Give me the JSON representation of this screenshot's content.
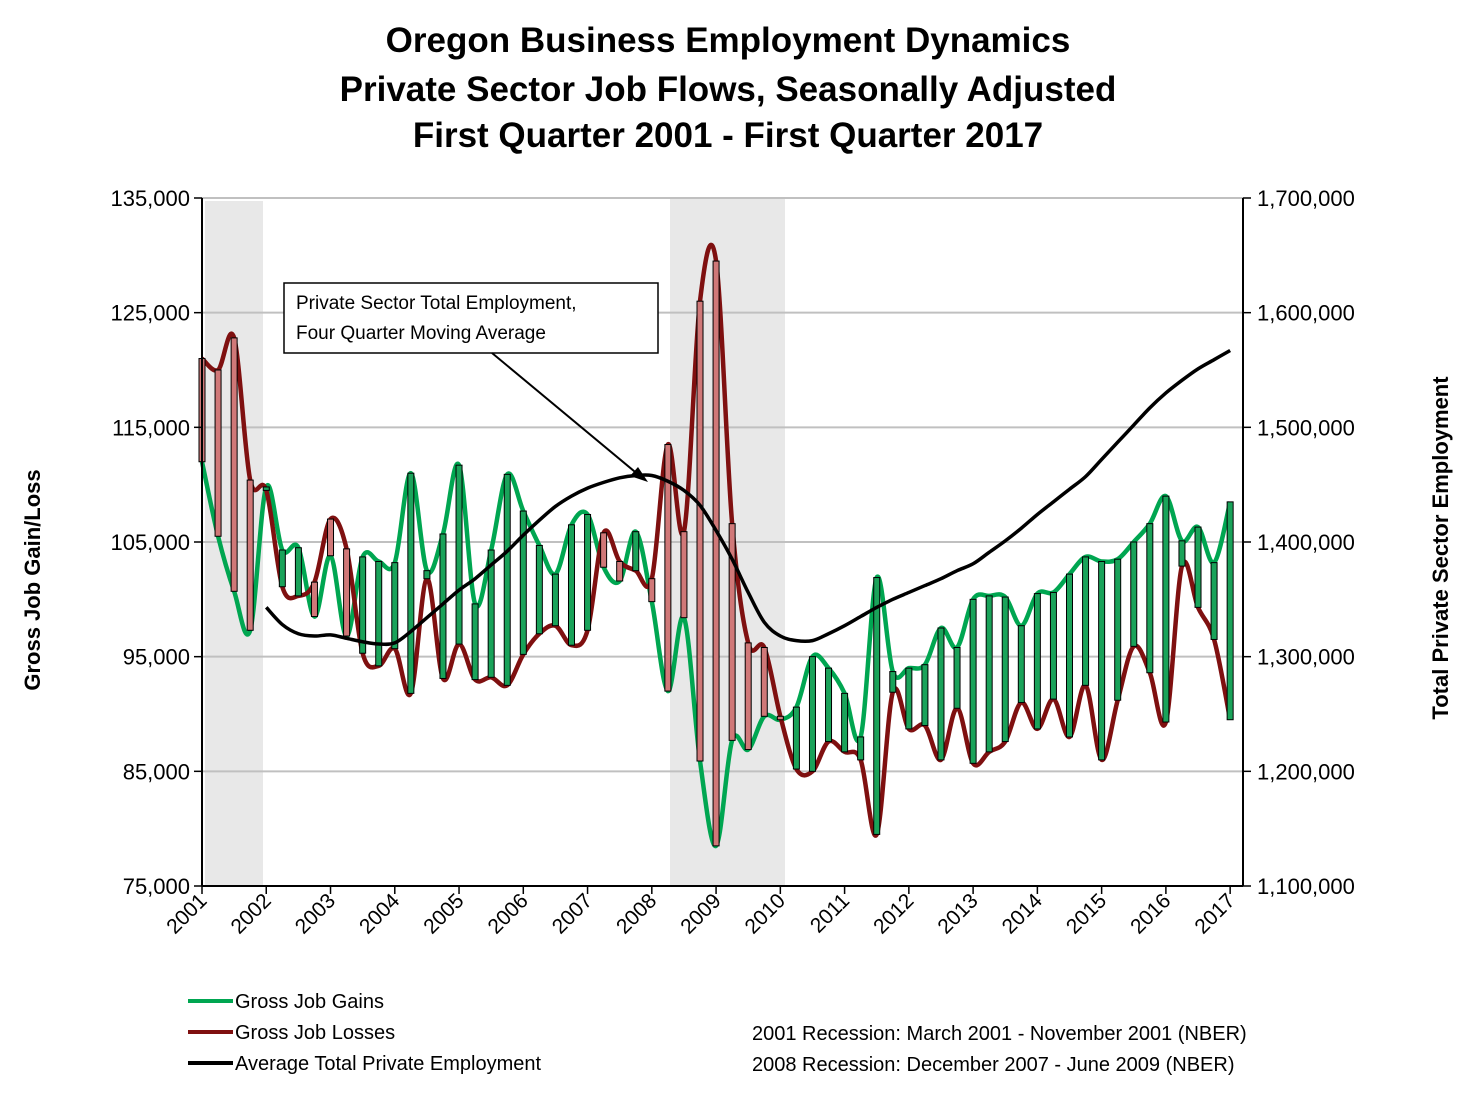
{
  "chart_data": {
    "type": "line",
    "title_lines": [
      "Oregon Business Employment Dynamics",
      "Private Sector Job Flows, Seasonally Adjusted",
      "First Quarter 2001 - First Quarter 2017"
    ],
    "y_label": "Gross Job Gain/Loss",
    "y2_label": "Total Private Sector Employment",
    "x": [
      2001,
      2001.25,
      2001.5,
      2001.75,
      2002,
      2002.25,
      2002.5,
      2002.75,
      2003,
      2003.25,
      2003.5,
      2003.75,
      2004,
      2004.25,
      2004.5,
      2004.75,
      2005,
      2005.25,
      2005.5,
      2005.75,
      2006,
      2006.25,
      2006.5,
      2006.75,
      2007,
      2007.25,
      2007.5,
      2007.75,
      2008,
      2008.25,
      2008.5,
      2008.75,
      2009,
      2009.25,
      2009.5,
      2009.75,
      2010,
      2010.25,
      2010.5,
      2010.75,
      2011,
      2011.25,
      2011.5,
      2011.75,
      2012,
      2012.25,
      2012.5,
      2012.75,
      2013,
      2013.25,
      2013.5,
      2013.75,
      2014,
      2014.25,
      2014.5,
      2014.75,
      2015,
      2015.25,
      2015.5,
      2015.75,
      2016,
      2016.25,
      2016.5,
      2016.75,
      2017
    ],
    "series": [
      {
        "name": "Gross Job Gains",
        "color": "#00a651",
        "values": [
          112000,
          105500,
          100700,
          97300,
          109800,
          104300,
          104500,
          98500,
          103800,
          96800,
          103700,
          103300,
          103200,
          111000,
          102500,
          105700,
          111700,
          99600,
          104300,
          110900,
          107700,
          104700,
          102200,
          106500,
          107400,
          102800,
          101600,
          105900,
          99800,
          92000,
          98400,
          85900,
          78500,
          87700,
          86900,
          89800,
          89500,
          90600,
          95000,
          94000,
          91800,
          88000,
          101900,
          93700,
          94000,
          94300,
          97500,
          95800,
          100000,
          100300,
          100200,
          97700,
          100500,
          100600,
          102200,
          103700,
          103300,
          103500,
          105000,
          106600,
          109000,
          105100,
          106300,
          103200,
          108500
        ]
      },
      {
        "name": "Gross Job Losses",
        "color": "#7f1010",
        "values": [
          121000,
          120000,
          122800,
          110400,
          109500,
          101100,
          100300,
          101500,
          107000,
          104400,
          95300,
          94200,
          95700,
          91800,
          101800,
          93100,
          96100,
          93000,
          93200,
          92500,
          95200,
          97000,
          97700,
          96000,
          97300,
          105800,
          103300,
          102500,
          101800,
          113500,
          105900,
          126000,
          129500,
          106600,
          96200,
          95800,
          89800,
          85200,
          85000,
          87600,
          86700,
          86000,
          79500,
          91900,
          88700,
          89000,
          86000,
          90500,
          85700,
          86700,
          87600,
          91000,
          88700,
          91300,
          88000,
          92500,
          86000,
          91200,
          95900,
          93600,
          89300,
          102900,
          99300,
          96500,
          89500
        ]
      },
      {
        "name": "Average Total Private Employment",
        "color": "#000000",
        "axis": "y2",
        "values": [
          null,
          null,
          null,
          null,
          1343000,
          1328000,
          1320000,
          1318000,
          1319000,
          1316000,
          1313000,
          1311000,
          1312000,
          1322000,
          1334000,
          1346000,
          1358000,
          1368000,
          1380000,
          1392000,
          1406000,
          1419000,
          1431000,
          1440000,
          1447000,
          1452000,
          1456000,
          1458000,
          1458000,
          1453000,
          1445000,
          1432000,
          1410000,
          1385000,
          1356000,
          1330000,
          1318000,
          1314000,
          1314000,
          1320000,
          1327000,
          1335000,
          1343000,
          1350000,
          1356000,
          1362000,
          1368000,
          1375000,
          1381000,
          1391000,
          1401000,
          1412000,
          1424000,
          1435000,
          1446000,
          1457000,
          1472000,
          1487000,
          1502000,
          1517000,
          1530000,
          1541000,
          1551000,
          1559000,
          1567000
        ]
      }
    ],
    "bar_gain_color": "#1aa35a",
    "bar_loss_color": "#d07878",
    "xlim": [
      2001,
      2017.2
    ],
    "xticks": [
      2001,
      2002,
      2003,
      2004,
      2005,
      2006,
      2007,
      2008,
      2009,
      2010,
      2011,
      2012,
      2013,
      2014,
      2015,
      2016,
      2017
    ],
    "ylim": [
      75000,
      135000
    ],
    "yticks": [
      {
        "value": 75000,
        "label": "75,000"
      },
      {
        "value": 85000,
        "label": "85,000"
      },
      {
        "value": 95000,
        "label": "95,000"
      },
      {
        "value": 105000,
        "label": "105,000"
      },
      {
        "value": 115000,
        "label": "115,000"
      },
      {
        "value": 125000,
        "label": "125,000"
      },
      {
        "value": 135000,
        "label": "135,000"
      }
    ],
    "y2lim": [
      1100000,
      1700000
    ],
    "y2ticks": [
      {
        "value": 1100000,
        "label": "1,100,000"
      },
      {
        "value": 1200000,
        "label": "1,200,000"
      },
      {
        "value": 1300000,
        "label": "1,300,000"
      },
      {
        "value": 1400000,
        "label": "1,400,000"
      },
      {
        "value": 1500000,
        "label": "1,500,000"
      },
      {
        "value": 1600000,
        "label": "1,600,000"
      },
      {
        "value": 1700000,
        "label": "1,700,000"
      }
    ],
    "grid": true,
    "annotation_lines": [
      "Private Sector Total Employment,",
      "Four Quarter Moving Average"
    ],
    "notes": [
      "2001 Recession: March 2001 - November 2001 (NBER)",
      "2008 Recession: December 2007 - June 2009 (NBER)"
    ]
  }
}
